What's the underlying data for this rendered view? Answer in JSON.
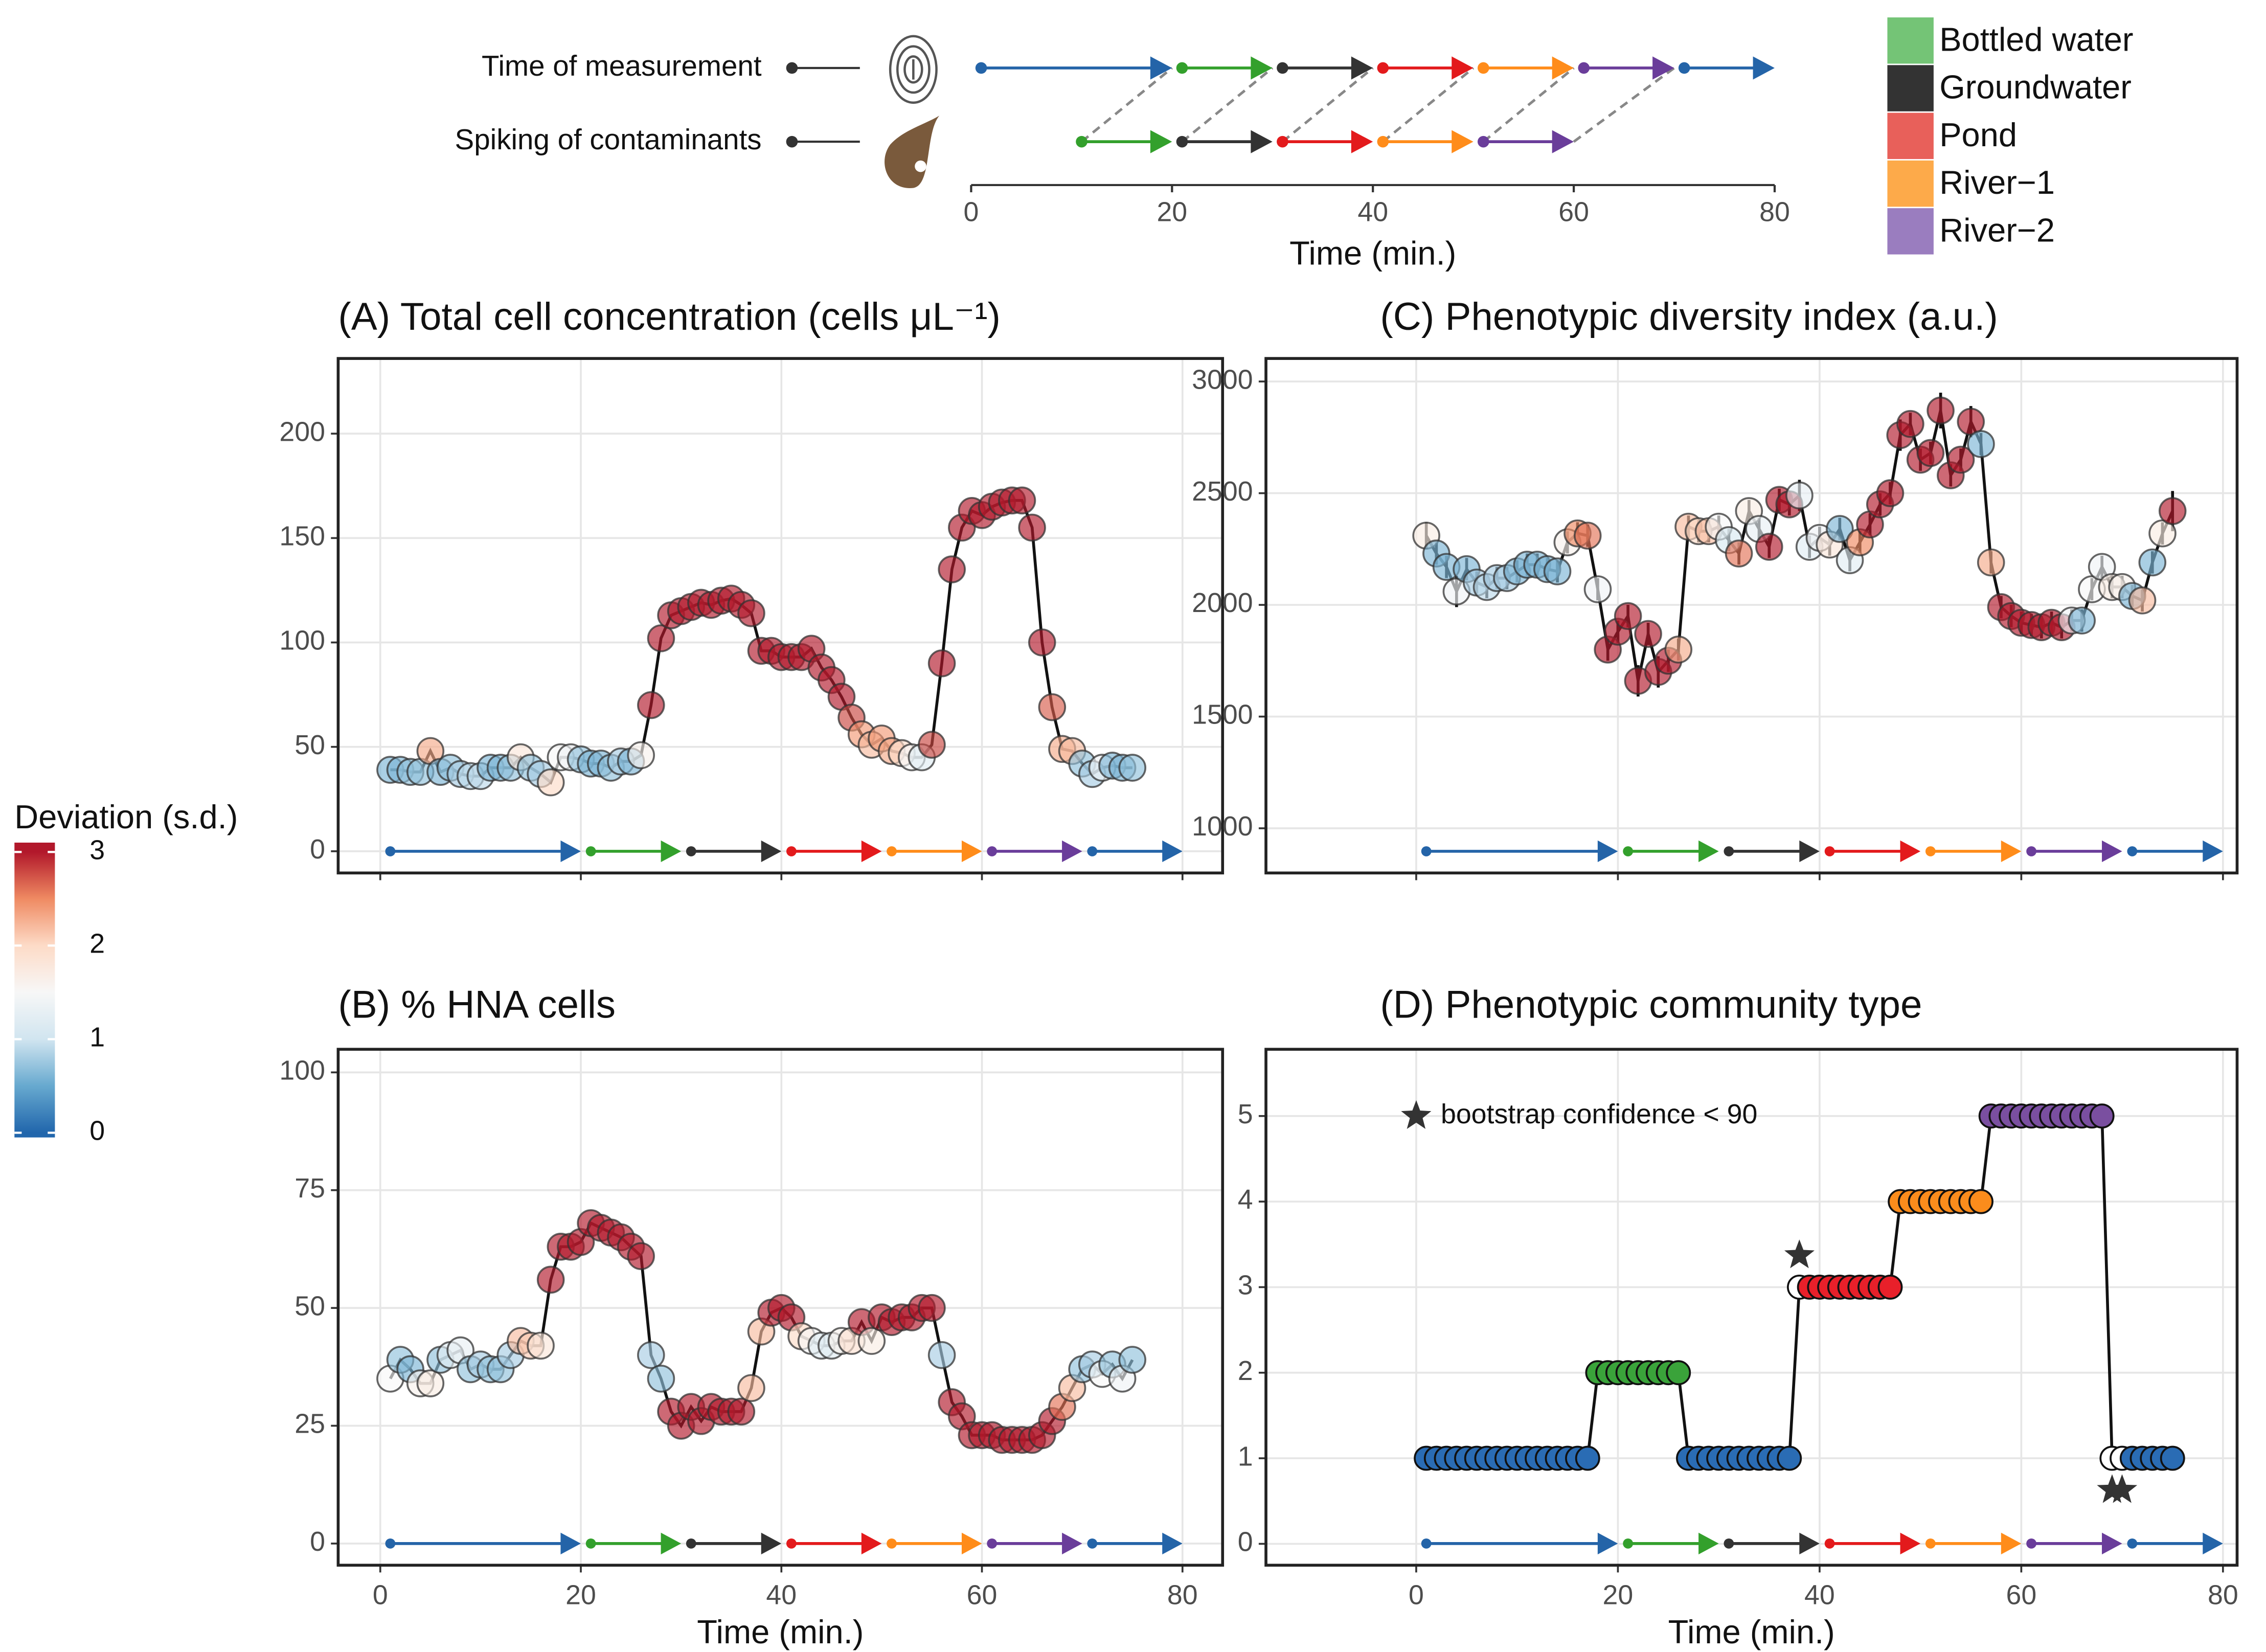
{
  "chart_data": [
    {
      "type": "timeline",
      "xlabel": "Time (min.)",
      "xlim": [
        0,
        80
      ],
      "xticks": [
        0,
        20,
        40,
        60,
        80
      ],
      "rows": [
        {
          "label": "Time of measurement",
          "segments": [
            {
              "start": 1,
              "end": 20,
              "color": "#2464a8"
            },
            {
              "start": 21,
              "end": 30,
              "color": "#33a02c"
            },
            {
              "start": 31,
              "end": 40,
              "color": "#333333"
            },
            {
              "start": 41,
              "end": 50,
              "color": "#e31a1c"
            },
            {
              "start": 51,
              "end": 60,
              "color": "#ff8c1a"
            },
            {
              "start": 61,
              "end": 70,
              "color": "#6a3d9a"
            },
            {
              "start": 71,
              "end": 80,
              "color": "#2464a8"
            }
          ]
        },
        {
          "label": "Spiking of contaminants",
          "segments": [
            {
              "start": 11,
              "end": 20,
              "color": "#33a02c"
            },
            {
              "start": 21,
              "end": 30,
              "color": "#333333"
            },
            {
              "start": 31,
              "end": 40,
              "color": "#e31a1c"
            },
            {
              "start": 41,
              "end": 50,
              "color": "#ff8c1a"
            },
            {
              "start": 51,
              "end": 60,
              "color": "#6a3d9a"
            }
          ]
        }
      ]
    },
    {
      "type": "scatter-line",
      "title": "(A) Total cell concentration (cells μL⁻¹)",
      "xlim": [
        -4.2,
        84
      ],
      "xticks": [
        0,
        20,
        40,
        60,
        80
      ],
      "show_xtick_labels": false,
      "ylim": [
        -10.4,
        236
      ],
      "yticks": [
        0,
        50,
        100,
        150,
        200
      ],
      "grid": true,
      "x": [
        1,
        2,
        3,
        4,
        5,
        6,
        7,
        8,
        9,
        10,
        11,
        12,
        13,
        14,
        15,
        16,
        17,
        18,
        19,
        20,
        21,
        22,
        23,
        24,
        25,
        26,
        27,
        28,
        29,
        30,
        31,
        32,
        33,
        34,
        35,
        36,
        37,
        38,
        39,
        40,
        41,
        42,
        43,
        44,
        45,
        46,
        47,
        48,
        49,
        50,
        51,
        52,
        53,
        54,
        55,
        56,
        57,
        58,
        59,
        60,
        61,
        62,
        63,
        64,
        65,
        66,
        67,
        68,
        69,
        70,
        71,
        72,
        73,
        74,
        75
      ],
      "values": [
        39,
        39,
        38,
        38,
        48,
        38,
        40,
        37,
        36,
        36,
        40,
        40,
        40,
        45,
        40,
        37,
        33,
        45,
        45,
        44,
        42,
        42,
        40,
        43,
        43,
        46,
        70,
        102,
        113,
        115,
        117,
        119,
        118,
        120,
        121,
        118,
        114,
        96,
        96,
        93,
        93,
        93,
        97,
        88,
        82,
        74,
        64,
        56,
        51,
        54,
        48,
        47,
        45,
        45,
        51,
        90,
        135,
        155,
        163,
        161,
        165,
        167,
        168,
        168,
        155,
        100,
        69,
        49,
        48,
        42,
        37,
        40,
        41,
        40,
        40
      ],
      "deviation": [
        0.6,
        0.6,
        0.7,
        0.7,
        2.3,
        0.6,
        0.7,
        0.8,
        0.9,
        0.9,
        0.6,
        0.6,
        0.7,
        1.8,
        0.7,
        0.8,
        2.0,
        1.5,
        1.4,
        0.7,
        0.6,
        0.6,
        0.7,
        0.8,
        0.6,
        1.6,
        3,
        3,
        3,
        3,
        3,
        3,
        3,
        3,
        3,
        3,
        3,
        3,
        3,
        3,
        3,
        3,
        3,
        3,
        3,
        3,
        2.8,
        2.4,
        2.2,
        2.4,
        2.3,
        2.0,
        1.5,
        1.2,
        2.8,
        3,
        3,
        3,
        3,
        3,
        3,
        3,
        3,
        3,
        3,
        3,
        2.7,
        2.3,
        2.2,
        0.7,
        0.8,
        1.4,
        0.6,
        0.6,
        0.7
      ]
    },
    {
      "type": "scatter-line",
      "title": "(B) % HNA cells",
      "xlabel": "Time (min.)",
      "xlim": [
        -4.2,
        84
      ],
      "xticks": [
        0,
        20,
        40,
        60,
        80
      ],
      "show_xtick_labels": true,
      "ylim": [
        -4.6,
        104.9
      ],
      "yticks": [
        0,
        25,
        50,
        75,
        100
      ],
      "grid": true,
      "x": [
        1,
        2,
        3,
        4,
        5,
        6,
        7,
        8,
        9,
        10,
        11,
        12,
        13,
        14,
        15,
        16,
        17,
        18,
        19,
        20,
        21,
        22,
        23,
        24,
        25,
        26,
        27,
        28,
        29,
        30,
        31,
        32,
        33,
        34,
        35,
        36,
        37,
        38,
        39,
        40,
        41,
        42,
        43,
        44,
        45,
        46,
        47,
        48,
        49,
        50,
        51,
        52,
        53,
        54,
        55,
        56,
        57,
        58,
        59,
        60,
        61,
        62,
        63,
        64,
        65,
        66,
        67,
        68,
        69,
        70,
        71,
        72,
        73,
        74,
        75
      ],
      "values": [
        35,
        39,
        37,
        34,
        34,
        39,
        40,
        41,
        37,
        38,
        37,
        37,
        40,
        43,
        42,
        42,
        56,
        63,
        63,
        64,
        68,
        67,
        66,
        65,
        63,
        61,
        40,
        35,
        28,
        25,
        29,
        26,
        29,
        28,
        28,
        28,
        33,
        45,
        49,
        50,
        48,
        44,
        43,
        42,
        42,
        43,
        43,
        47,
        43,
        48,
        47,
        48,
        48,
        50,
        50,
        40,
        30,
        27,
        23,
        23,
        23,
        22,
        22,
        22,
        22,
        23,
        26,
        29,
        33,
        37,
        38,
        36,
        38,
        35,
        39
      ],
      "deviation": [
        1.5,
        0.7,
        0.6,
        1.6,
        1.7,
        0.7,
        1.2,
        1.3,
        0.7,
        0.8,
        0.7,
        0.7,
        0.8,
        2.2,
        2.1,
        1.8,
        3,
        3,
        3,
        3,
        3,
        3,
        3,
        3,
        3,
        3,
        0.8,
        0.7,
        3,
        3,
        3,
        3,
        3,
        3,
        3,
        3,
        2.2,
        2.2,
        3,
        3,
        3,
        2,
        1.5,
        1.2,
        1.2,
        1.6,
        1.9,
        3,
        1.7,
        3,
        3,
        3,
        3,
        3,
        3,
        0.8,
        3,
        3,
        3,
        3,
        3,
        3,
        3,
        3,
        3,
        3,
        3,
        2.6,
        2.2,
        0.7,
        0.8,
        1.5,
        0.7,
        1.4,
        0.7
      ]
    },
    {
      "type": "scatter-line",
      "title": "(C) Phenotypic diversity index (a.u.)",
      "xlim": [
        -14.9,
        81.4
      ],
      "xticks": [
        0,
        20,
        40,
        60,
        80
      ],
      "show_xtick_labels": false,
      "ylim": [
        800,
        3103
      ],
      "yticks": [
        1000,
        1500,
        2000,
        2500,
        3000
      ],
      "grid": true,
      "x": [
        1,
        2,
        3,
        4,
        5,
        6,
        7,
        8,
        9,
        10,
        11,
        12,
        13,
        14,
        15,
        16,
        17,
        18,
        19,
        20,
        21,
        22,
        23,
        24,
        25,
        26,
        27,
        28,
        29,
        30,
        31,
        32,
        33,
        34,
        35,
        36,
        37,
        38,
        39,
        40,
        41,
        42,
        43,
        44,
        45,
        46,
        47,
        48,
        49,
        50,
        51,
        52,
        53,
        54,
        55,
        56,
        57,
        58,
        59,
        60,
        61,
        62,
        63,
        64,
        65,
        66,
        67,
        68,
        69,
        70,
        71,
        72,
        73,
        74,
        75
      ],
      "values": [
        2310,
        2230,
        2170,
        2060,
        2160,
        2100,
        2080,
        2120,
        2120,
        2150,
        2180,
        2180,
        2160,
        2150,
        2280,
        2320,
        2310,
        2070,
        1800,
        1880,
        1950,
        1660,
        1870,
        1700,
        1750,
        1800,
        2350,
        2330,
        2330,
        2350,
        2290,
        2230,
        2420,
        2340,
        2260,
        2470,
        2450,
        2490,
        2260,
        2300,
        2270,
        2340,
        2200,
        2280,
        2360,
        2450,
        2500,
        2760,
        2810,
        2650,
        2680,
        2870,
        2580,
        2650,
        2820,
        2720,
        2190,
        1990,
        1950,
        1920,
        1910,
        1900,
        1920,
        1900,
        1930,
        1930,
        2070,
        2170,
        2080,
        2080,
        2040,
        2020,
        2190,
        2320,
        2420
      ],
      "errors": [
        60,
        50,
        50,
        70,
        50,
        50,
        50,
        50,
        50,
        50,
        50,
        50,
        50,
        50,
        50,
        50,
        50,
        50,
        50,
        50,
        50,
        70,
        50,
        70,
        50,
        50,
        50,
        50,
        50,
        50,
        50,
        50,
        50,
        50,
        50,
        50,
        50,
        70,
        50,
        50,
        50,
        50,
        50,
        50,
        50,
        50,
        50,
        70,
        50,
        50,
        50,
        80,
        50,
        50,
        70,
        50,
        50,
        50,
        50,
        50,
        50,
        50,
        50,
        50,
        50,
        50,
        50,
        50,
        50,
        50,
        50,
        50,
        50,
        50,
        90
      ],
      "deviation": [
        1.7,
        0.6,
        0.6,
        1.4,
        0.6,
        0.8,
        0.9,
        0.8,
        0.8,
        0.6,
        0.6,
        0.6,
        0.6,
        0.6,
        1.6,
        2.5,
        2.6,
        1.4,
        3,
        3,
        3,
        3,
        3,
        3,
        3,
        2.3,
        2.2,
        2.0,
        2.2,
        1.5,
        1.1,
        2.6,
        1.7,
        1.3,
        3,
        3,
        3,
        1.3,
        1.2,
        1.4,
        1.8,
        0.6,
        1.2,
        2.5,
        3,
        3,
        3,
        3,
        3,
        3,
        3,
        3,
        3,
        3,
        3,
        0.6,
        2.3,
        3,
        3,
        3,
        3,
        3,
        3,
        3,
        1.4,
        0.6,
        1.5,
        1.4,
        1.7,
        1.6,
        0.6,
        2.2,
        0.6,
        1.7,
        3
      ]
    },
    {
      "type": "class-line",
      "title": "(D) Phenotypic community type",
      "xlabel": "Time (min.)",
      "annotation": "bootstrap confidence < 90",
      "xlim": [
        -14.9,
        81.4
      ],
      "xticks": [
        0,
        20,
        40,
        60,
        80
      ],
      "show_xtick_labels": true,
      "ylim": [
        -0.25,
        5.78
      ],
      "yticks": [
        0,
        1,
        2,
        3,
        4,
        5
      ],
      "grid": true,
      "class_colors": [
        "#2a6cb4",
        "#3aa33a",
        "#e8202a",
        "#fb8c1c",
        "#7a4fa0"
      ],
      "low_confidence": [
        38,
        69,
        70
      ],
      "x": [
        1,
        2,
        3,
        4,
        5,
        6,
        7,
        8,
        9,
        10,
        11,
        12,
        13,
        14,
        15,
        16,
        17,
        18,
        19,
        20,
        21,
        22,
        23,
        24,
        25,
        26,
        27,
        28,
        29,
        30,
        31,
        32,
        33,
        34,
        35,
        36,
        37,
        38,
        39,
        40,
        41,
        42,
        43,
        44,
        45,
        46,
        47,
        48,
        49,
        50,
        51,
        52,
        53,
        54,
        55,
        56,
        57,
        58,
        59,
        60,
        61,
        62,
        63,
        64,
        65,
        66,
        67,
        68,
        69,
        70,
        71,
        72,
        73,
        74,
        75
      ],
      "values": [
        1,
        1,
        1,
        1,
        1,
        1,
        1,
        1,
        1,
        1,
        1,
        1,
        1,
        1,
        1,
        1,
        1,
        2,
        2,
        2,
        2,
        2,
        2,
        2,
        2,
        2,
        1,
        1,
        1,
        1,
        1,
        1,
        1,
        1,
        1,
        1,
        1,
        3,
        3,
        3,
        3,
        3,
        3,
        3,
        3,
        3,
        3,
        4,
        4,
        4,
        4,
        4,
        4,
        4,
        4,
        4,
        5,
        5,
        5,
        5,
        5,
        5,
        5,
        5,
        5,
        5,
        5,
        5,
        1,
        1,
        1,
        1,
        1,
        1,
        1
      ]
    }
  ],
  "legend": {
    "items": [
      {
        "name": "Bottled water",
        "color": "#74c476"
      },
      {
        "name": "Groundwater",
        "color": "#333333"
      },
      {
        "name": "Pond",
        "color": "#e8605a"
      },
      {
        "name": "River−1",
        "color": "#fdaa4a"
      },
      {
        "name": "River−2",
        "color": "#9a7dbf"
      }
    ]
  },
  "colorbar": {
    "title": "Deviation (s.d.)",
    "limits": [
      0,
      3
    ],
    "range": [
      -0.05,
      3.1
    ],
    "ticks": [
      0,
      1,
      2,
      3
    ],
    "colors": [
      "#2166ac",
      "#67a9cf",
      "#d1e5f0",
      "#f7f7f7",
      "#fddbc7",
      "#ef8a62",
      "#b2182b"
    ]
  }
}
